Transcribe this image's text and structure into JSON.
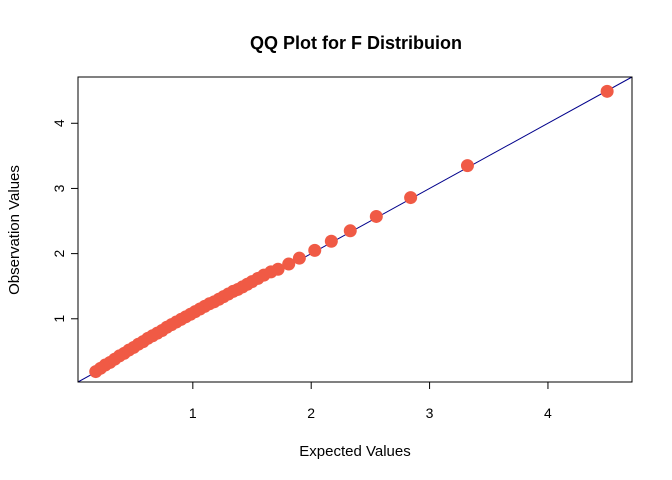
{
  "chart_data": {
    "type": "scatter",
    "title": "QQ Plot for F Distribuion",
    "xlabel": "Expected Values",
    "ylabel": "Observation Values",
    "xlim": [
      0.03,
      4.71
    ],
    "ylim": [
      0.03,
      4.71
    ],
    "xticks": [
      "1",
      "2",
      "3",
      "4"
    ],
    "yticks": [
      "1",
      "2",
      "3",
      "4"
    ],
    "grid": false,
    "legend": "none",
    "point_color": "#f05a45",
    "line_color": "#00008b",
    "reference_line": {
      "slope": 1,
      "intercept": 0
    },
    "series": [
      {
        "x": [
          0.18,
          0.22,
          0.26,
          0.3,
          0.34,
          0.38,
          0.42,
          0.46,
          0.5,
          0.54,
          0.58,
          0.62,
          0.66,
          0.7,
          0.74,
          0.78,
          0.82,
          0.86,
          0.9,
          0.94,
          0.98,
          1.02,
          1.06,
          1.1,
          1.14,
          1.18,
          1.22,
          1.26,
          1.3,
          1.34,
          1.38,
          1.42,
          1.46,
          1.5,
          1.55,
          1.6,
          1.66,
          1.72,
          1.81,
          1.9,
          2.03,
          2.17,
          2.33,
          2.55,
          2.84,
          3.32,
          4.5
        ],
        "y": [
          0.19,
          0.24,
          0.29,
          0.33,
          0.38,
          0.43,
          0.47,
          0.52,
          0.56,
          0.61,
          0.65,
          0.7,
          0.74,
          0.78,
          0.82,
          0.87,
          0.91,
          0.95,
          0.99,
          1.03,
          1.07,
          1.11,
          1.15,
          1.19,
          1.23,
          1.26,
          1.3,
          1.34,
          1.38,
          1.42,
          1.45,
          1.49,
          1.53,
          1.57,
          1.62,
          1.67,
          1.72,
          1.76,
          1.84,
          1.93,
          2.05,
          2.19,
          2.35,
          2.57,
          2.86,
          3.35,
          4.49
        ]
      }
    ]
  }
}
